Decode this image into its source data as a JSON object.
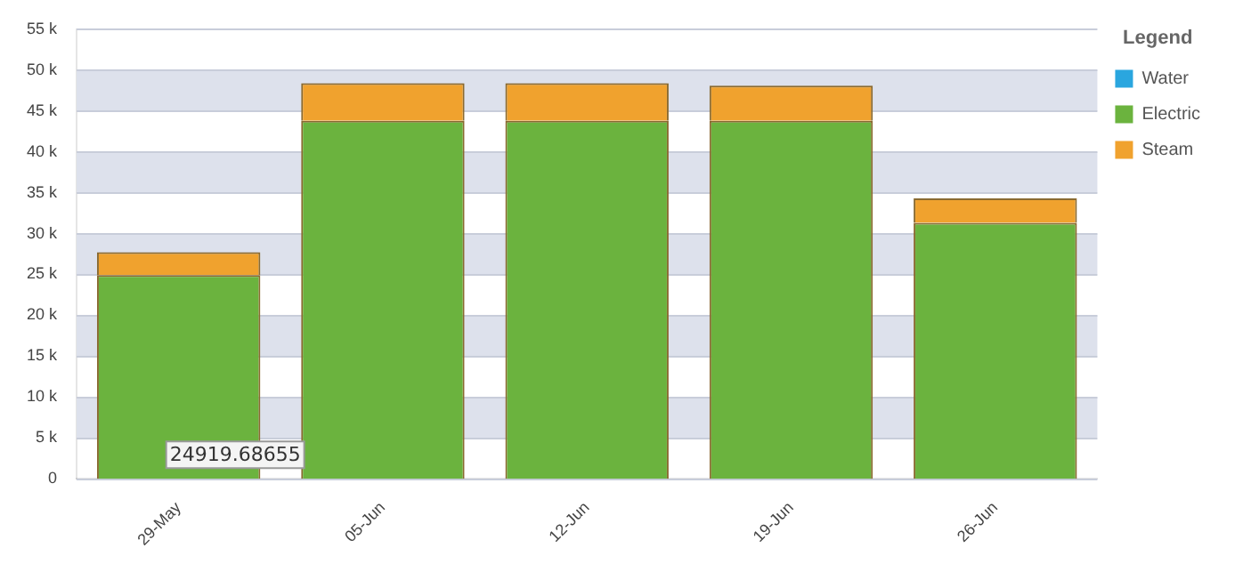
{
  "chart_data": {
    "type": "bar",
    "stacked": true,
    "categories": [
      "29-May",
      "05-Jun",
      "12-Jun",
      "19-Jun",
      "26-Jun"
    ],
    "series": [
      {
        "name": "Water",
        "color": "#2aa6df",
        "values": [
          0,
          0,
          0,
          0,
          0
        ]
      },
      {
        "name": "Electric",
        "color": "#6bb33e",
        "values": [
          24920,
          43800,
          43800,
          43800,
          31300
        ]
      },
      {
        "name": "Steam",
        "color": "#f0a22e",
        "values": [
          2800,
          4600,
          4600,
          4300,
          3000
        ]
      }
    ],
    "ylim": [
      0,
      55000
    ],
    "yticks": [
      {
        "value": 0,
        "label": "0"
      },
      {
        "value": 5000,
        "label": "5 k"
      },
      {
        "value": 10000,
        "label": "10 k"
      },
      {
        "value": 15000,
        "label": "15 k"
      },
      {
        "value": 20000,
        "label": "20 k"
      },
      {
        "value": 25000,
        "label": "25 k"
      },
      {
        "value": 30000,
        "label": "30 k"
      },
      {
        "value": 35000,
        "label": "35 k"
      },
      {
        "value": 40000,
        "label": "40 k"
      },
      {
        "value": 45000,
        "label": "45 k"
      },
      {
        "value": 50000,
        "label": "50 k"
      },
      {
        "value": 55000,
        "label": "55 k"
      }
    ],
    "grid": "y",
    "legend": "right",
    "legend_title": "Legend",
    "annotations": [
      "24919.68655"
    ]
  }
}
